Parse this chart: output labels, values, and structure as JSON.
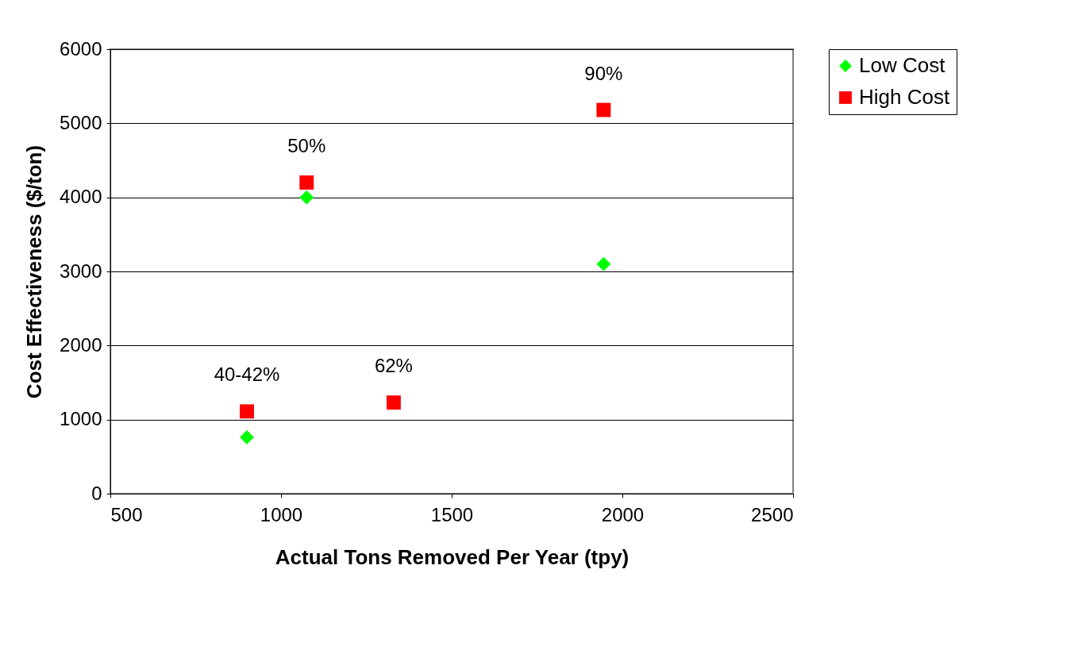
{
  "chart_data": {
    "type": "scatter",
    "xlabel": "Actual Tons Removed Per Year (tpy)",
    "ylabel": "Cost Effectiveness ($/ton)",
    "x": [
      900,
      1075,
      1330,
      1945
    ],
    "series": [
      {
        "name": "Low Cost",
        "color": "#00ff00",
        "marker": "diamond",
        "values": [
          760,
          4000,
          null,
          3100
        ]
      },
      {
        "name": "High Cost",
        "color": "#ff0000",
        "marker": "square",
        "values": [
          1110,
          4200,
          1230,
          5180
        ]
      }
    ],
    "xlim": [
      500,
      2500
    ],
    "xticks": [
      500,
      1000,
      1500,
      2000,
      2500
    ],
    "ylim": [
      0,
      6000
    ],
    "yticks": [
      0,
      1000,
      2000,
      3000,
      4000,
      5000,
      6000
    ],
    "grid": "y",
    "legend": "right",
    "annotations": [
      {
        "text": "40-42%",
        "x": 900,
        "y": 1110
      },
      {
        "text": "50%",
        "x": 1075,
        "y": 4200
      },
      {
        "text": "62%",
        "x": 1330,
        "y": 1230
      },
      {
        "text": "90%",
        "x": 1945,
        "y": 5180
      }
    ]
  }
}
